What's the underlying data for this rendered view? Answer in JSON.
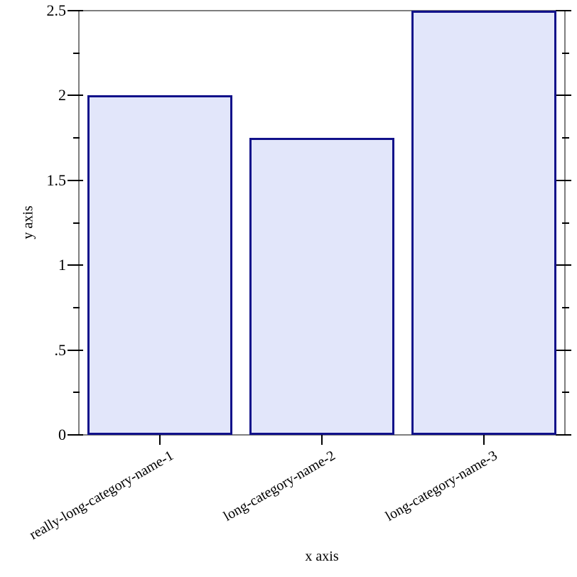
{
  "chart_data": {
    "type": "bar",
    "title": "",
    "xlabel": "x axis",
    "ylabel": "y axis",
    "categories": [
      "really-long-category-name-1",
      "long-category-name-2",
      "long-category-name-3"
    ],
    "values": [
      2,
      1.75,
      2.5
    ],
    "ylim": [
      0,
      2.5
    ],
    "y_major_ticks": [
      {
        "value": 0,
        "label": "0"
      },
      {
        "value": 0.5,
        "label": ".5"
      },
      {
        "value": 1,
        "label": "1"
      },
      {
        "value": 1.5,
        "label": "1.5"
      },
      {
        "value": 2,
        "label": "2"
      },
      {
        "value": 2.5,
        "label": "2.5"
      }
    ],
    "y_minor_tick_values": [
      0.25,
      0.75,
      1.25,
      1.75,
      2.25
    ],
    "category_label_angle_deg": -30,
    "grid": false,
    "legend_position": "none",
    "colors": {
      "bar_fill": "#e2e6fa",
      "bar_border": "#11118a",
      "axis_frame": "#7e7e7e",
      "tick": "#000000",
      "text": "#000000",
      "background": "#ffffff"
    }
  }
}
